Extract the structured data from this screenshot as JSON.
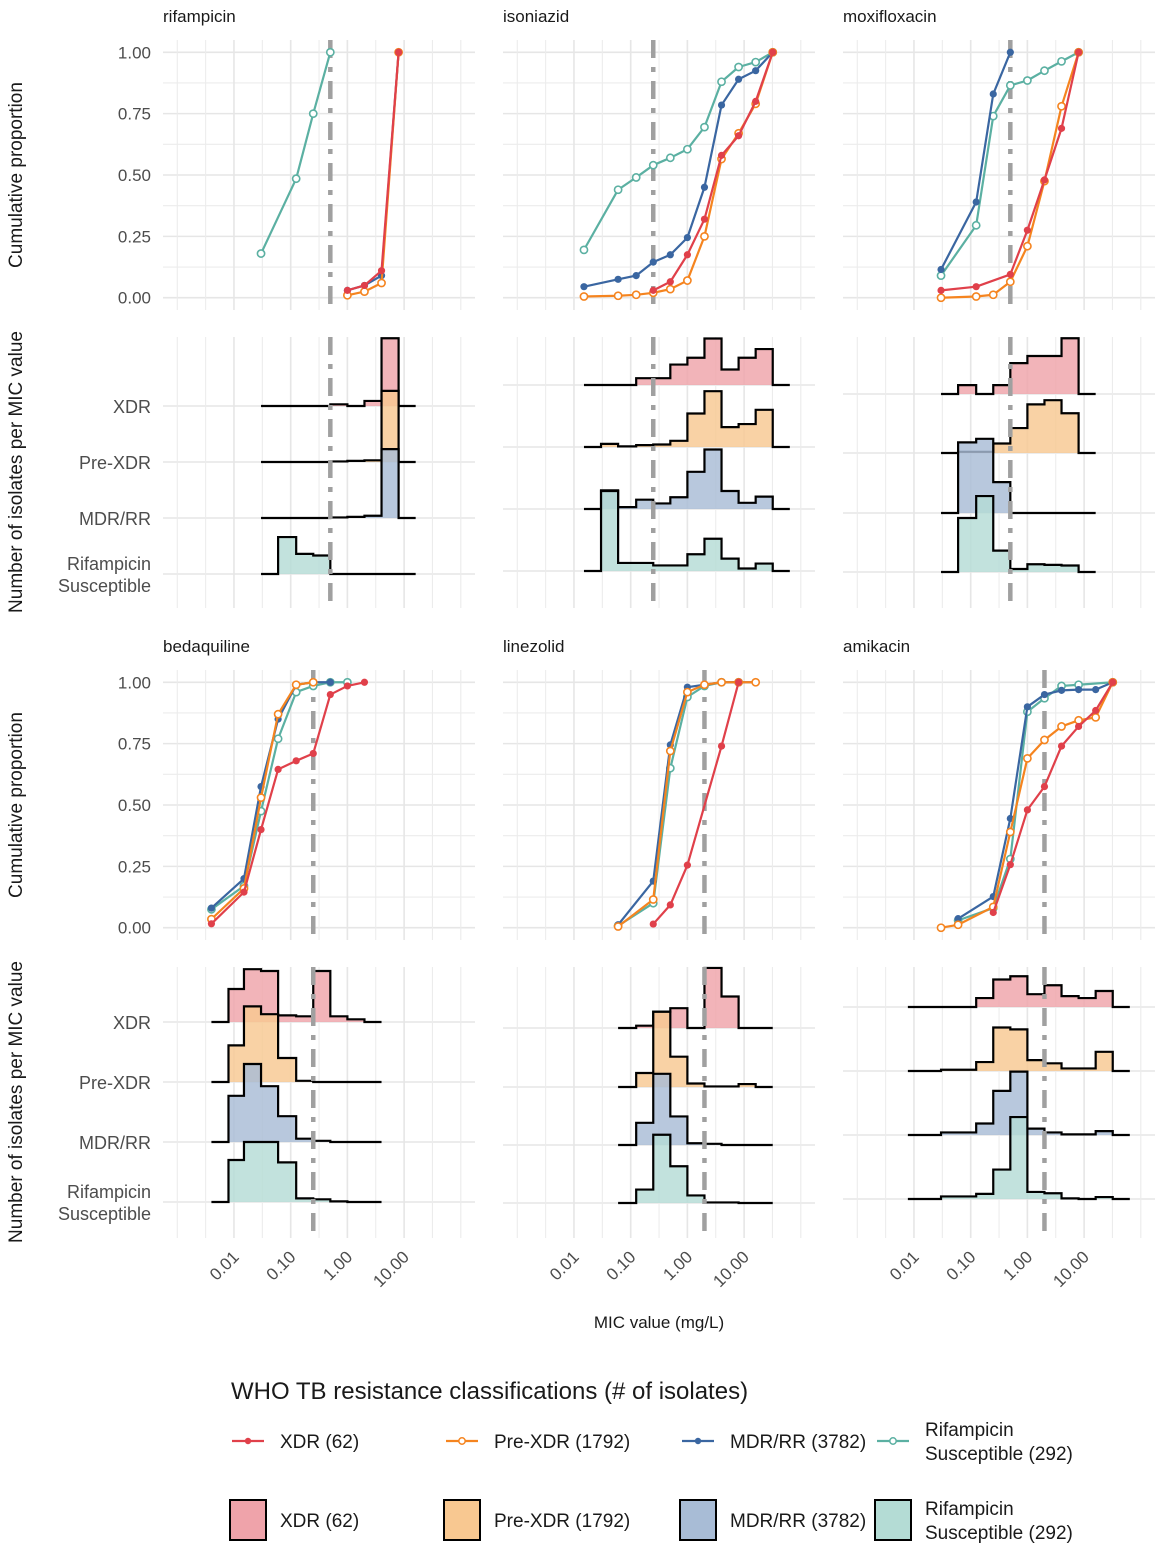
{
  "chart_data": {
    "type": "line",
    "title": "",
    "xlabel": "MIC value (mg/L)",
    "ylabel_top": "Cumulative proportion",
    "ylabel_ridge": "Number of isolates per MIC value",
    "xscale": "log10",
    "xlim": [
      0.00056,
      178
    ],
    "x_ticks": [
      0.01,
      0.1,
      1,
      10
    ],
    "x_tick_labels": [
      "0.01",
      "0.10",
      "1.00",
      "10.00"
    ],
    "y_ticks": [
      0,
      0.25,
      0.5,
      0.75,
      1
    ],
    "y_tick_labels": [
      "0.00",
      "0.25",
      "0.50",
      "0.75",
      "1.00"
    ],
    "ylim": [
      -0.05,
      1.05
    ],
    "grid": true,
    "ridge_categories": [
      "XDR",
      "Pre-XDR",
      "MDR/RR",
      "Rifampicin Susceptible"
    ],
    "ridge_category_labels": [
      [
        "XDR"
      ],
      [
        "Pre-XDR"
      ],
      [
        "MDR/RR"
      ],
      [
        "Rifampicin",
        "Susceptible"
      ]
    ],
    "groups": [
      {
        "key": "xdr",
        "name": "XDR (62)",
        "name_lines": [
          "XDR (62)"
        ],
        "color": "#E0404A",
        "fill": "#EFA3AA",
        "marker": "filled"
      },
      {
        "key": "prexdr",
        "name": "Pre-XDR (1792)",
        "name_lines": [
          "Pre-XDR (1792)"
        ],
        "color": "#F5841F",
        "fill": "#F8C891",
        "marker": "open"
      },
      {
        "key": "mdr",
        "name": "MDR/RR (3782)",
        "name_lines": [
          "MDR/RR (3782)"
        ],
        "color": "#3A66A1",
        "fill": "#A8BCD6",
        "marker": "filled"
      },
      {
        "key": "rifs",
        "name": "Rifampicin Susceptible (292)",
        "name_lines": [
          "Rifampicin",
          "Susceptible (292)"
        ],
        "color": "#5BB0A2",
        "fill": "#B4DCD5",
        "marker": "open"
      }
    ],
    "legend": {
      "title": "WHO TB resistance classifications (# of isolates)",
      "placement": "bottom"
    },
    "panels": [
      {
        "drug": "rifampicin",
        "breakpoint": 0.5,
        "cumulative": {
          "rifs": {
            "x": [
              0.03,
              0.125,
              0.25,
              0.5
            ],
            "y": [
              0.18,
              0.485,
              0.75,
              1.0
            ]
          },
          "mdr": {
            "x": [
              1,
              2,
              4,
              8
            ],
            "y": [
              0.03,
              0.05,
              0.09,
              1.0
            ]
          },
          "prexdr": {
            "x": [
              1,
              2,
              4,
              8
            ],
            "y": [
              0.01,
              0.025,
              0.06,
              1.0
            ]
          },
          "xdr": {
            "x": [
              1,
              2,
              4,
              8
            ],
            "y": [
              0.03,
              0.05,
              0.11,
              1.0
            ]
          }
        },
        "ridge": {
          "edges": [
            0.03,
            0.06,
            0.125,
            0.25,
            0.5,
            1,
            2,
            4,
            8,
            16
          ],
          "xdr": [
            0,
            0,
            0,
            0,
            0.03,
            0,
            0.09,
            1.21,
            0
          ],
          "prexdr": [
            0,
            0,
            0,
            0,
            0.01,
            0.02,
            0.03,
            1.27,
            0
          ],
          "mdr": [
            0,
            0,
            0,
            0,
            0.01,
            0.02,
            0.04,
            1.23,
            0
          ],
          "rifs": [
            0,
            0.66,
            0.36,
            0.33,
            0,
            0,
            0,
            0,
            0
          ]
        }
      },
      {
        "drug": "isoniazid",
        "breakpoint": 0.25,
        "cumulative": {
          "rifs": {
            "x": [
              0.015,
              0.06,
              0.125,
              0.25,
              0.5,
              1,
              2,
              4,
              8,
              16,
              32
            ],
            "y": [
              0.195,
              0.44,
              0.49,
              0.54,
              0.57,
              0.605,
              0.695,
              0.88,
              0.94,
              0.96,
              1.0
            ]
          },
          "mdr": {
            "x": [
              0.015,
              0.06,
              0.125,
              0.25,
              0.5,
              1,
              2,
              4,
              8,
              16,
              32
            ],
            "y": [
              0.045,
              0.075,
              0.09,
              0.145,
              0.175,
              0.245,
              0.45,
              0.785,
              0.89,
              0.925,
              1.0
            ]
          },
          "prexdr": {
            "x": [
              0.015,
              0.06,
              0.125,
              0.25,
              0.5,
              1,
              2,
              4,
              8,
              16,
              32
            ],
            "y": [
              0.005,
              0.008,
              0.012,
              0.02,
              0.035,
              0.07,
              0.25,
              0.565,
              0.67,
              0.79,
              1.0
            ]
          },
          "xdr": {
            "x": [
              0.25,
              0.5,
              1,
              2,
              4,
              8,
              16,
              32
            ],
            "y": [
              0.03,
              0.065,
              0.175,
              0.32,
              0.58,
              0.66,
              0.8,
              1.0
            ]
          }
        },
        "ridge": {
          "edges": [
            0.015,
            0.03,
            0.06,
            0.125,
            0.25,
            0.5,
            1,
            2,
            4,
            8,
            16,
            32,
            64
          ],
          "xdr": [
            0,
            0,
            0,
            0.11,
            0.11,
            0.33,
            0.44,
            0.75,
            0.25,
            0.44,
            0.58,
            0
          ],
          "prexdr": [
            0,
            0.05,
            0.01,
            0.03,
            0.04,
            0.1,
            0.54,
            0.9,
            0.32,
            0.37,
            0.6,
            0
          ],
          "mdr": [
            0,
            0.3,
            0.03,
            0.15,
            0.09,
            0.19,
            0.6,
            0.96,
            0.29,
            0.1,
            0.2,
            0
          ],
          "rifs": [
            0,
            1.29,
            0.13,
            0.13,
            0.09,
            0.09,
            0.27,
            0.52,
            0.2,
            0.04,
            0.12,
            0
          ]
        }
      },
      {
        "drug": "moxifloxacin",
        "breakpoint": 0.5,
        "cumulative": {
          "mdr": {
            "x": [
              0.03,
              0.125,
              0.25,
              0.5
            ],
            "y": [
              0.115,
              0.39,
              0.83,
              1.0
            ]
          },
          "rifs": {
            "x": [
              0.03,
              0.125,
              0.25,
              0.5,
              1,
              2,
              4,
              8
            ],
            "y": [
              0.09,
              0.295,
              0.74,
              0.865,
              0.885,
              0.925,
              0.963,
              1.0
            ]
          },
          "xdr": {
            "x": [
              0.03,
              0.125,
              0.5,
              1,
              2,
              4,
              8
            ],
            "y": [
              0.03,
              0.045,
              0.095,
              0.275,
              0.48,
              0.69,
              1.0
            ]
          },
          "prexdr": {
            "x": [
              0.03,
              0.125,
              0.25,
              0.5,
              1,
              2,
              4,
              8
            ],
            "y": [
              0.0,
              0.005,
              0.012,
              0.065,
              0.21,
              0.475,
              0.78,
              1.0
            ]
          }
        },
        "ridge": {
          "edges": [
            0.03,
            0.06,
            0.125,
            0.25,
            0.5,
            1,
            2,
            4,
            8,
            16
          ],
          "xdr": [
            0,
            0.15,
            0,
            0.15,
            0.52,
            0.64,
            0.64,
            0.94,
            0
          ],
          "prexdr": [
            0,
            0.02,
            0.02,
            0.16,
            0.42,
            0.82,
            0.89,
            0.67,
            0
          ],
          "mdr": [
            0,
            1.19,
            1.25,
            0.52,
            0,
            0,
            0,
            0,
            0
          ],
          "rifs": [
            0,
            0.91,
            1.28,
            0.36,
            0.05,
            0.13,
            0.12,
            0.11,
            0
          ]
        }
      },
      {
        "drug": "bedaquiline",
        "breakpoint": 0.25,
        "cumulative": {
          "mdr": {
            "x": [
              0.004,
              0.015,
              0.03,
              0.06,
              0.125,
              0.25,
              0.5
            ],
            "y": [
              0.08,
              0.2,
              0.575,
              0.85,
              0.99,
              1.0,
              1.0
            ]
          },
          "prexdr": {
            "x": [
              0.004,
              0.015,
              0.03,
              0.06,
              0.125,
              0.25
            ],
            "y": [
              0.035,
              0.16,
              0.53,
              0.87,
              0.99,
              1.0
            ]
          },
          "rifs": {
            "x": [
              0.004,
              0.015,
              0.03,
              0.06,
              0.125,
              0.25,
              0.5,
              1
            ],
            "y": [
              0.075,
              0.17,
              0.475,
              0.77,
              0.96,
              0.985,
              1.0,
              1.0
            ]
          },
          "xdr": {
            "x": [
              0.004,
              0.015,
              0.03,
              0.06,
              0.125,
              0.25,
              0.5,
              1,
              2
            ],
            "y": [
              0.016,
              0.145,
              0.4,
              0.645,
              0.68,
              0.71,
              0.95,
              0.985,
              1.0
            ]
          }
        },
        "ridge": {
          "edges": [
            0.004,
            0.008,
            0.015,
            0.03,
            0.06,
            0.125,
            0.25,
            0.5,
            1,
            2,
            4
          ],
          "xdr": [
            0,
            0.55,
            0.88,
            0.85,
            0.11,
            0.095,
            0.85,
            0.095,
            0.045,
            0
          ],
          "prexdr": [
            0,
            0.61,
            1.26,
            1.13,
            0.4,
            0.02,
            0,
            0,
            0,
            0
          ],
          "mdr": [
            0,
            0.77,
            1.3,
            0.93,
            0.43,
            0.055,
            0.02,
            0,
            0,
            0
          ],
          "rifs": [
            0,
            0.7,
            1.0,
            1.0,
            0.66,
            0.06,
            0.045,
            0.01,
            0,
            0
          ]
        }
      },
      {
        "drug": "linezolid",
        "breakpoint": 2,
        "cumulative": {
          "mdr": {
            "x": [
              0.06,
              0.25,
              0.5,
              1,
              2,
              4,
              8,
              16
            ],
            "y": [
              0.012,
              0.19,
              0.745,
              0.98,
              0.99,
              1.0,
              1.0,
              1.0
            ]
          },
          "prexdr": {
            "x": [
              0.06,
              0.25,
              0.5,
              1,
              2,
              4,
              8,
              16
            ],
            "y": [
              0.005,
              0.115,
              0.72,
              0.96,
              0.99,
              1.0,
              1.0,
              1.0
            ]
          },
          "rifs": {
            "x": [
              0.06,
              0.25,
              0.5,
              1,
              2,
              4,
              8
            ],
            "y": [
              0.008,
              0.1,
              0.65,
              0.94,
              0.985,
              1.0,
              1.0
            ]
          },
          "xdr": {
            "x": [
              0.25,
              0.5,
              1,
              4,
              8
            ],
            "y": [
              0.015,
              0.093,
              0.255,
              0.74,
              1.0
            ]
          }
        },
        "ridge": {
          "edges": [
            0.06,
            0.125,
            0.25,
            0.5,
            1,
            2,
            4,
            8,
            16,
            32
          ],
          "xdr": [
            0,
            0.04,
            0.28,
            0.34,
            0,
            1.03,
            0.54,
            0,
            0
          ],
          "prexdr": [
            0,
            0.24,
            1.29,
            0.52,
            0.06,
            0.01,
            0.01,
            0.05,
            0
          ],
          "mdr": [
            0,
            0.38,
            1.22,
            0.49,
            0.03,
            0.02,
            0,
            0,
            0
          ],
          "rifs": [
            0,
            0.23,
            1.17,
            0.63,
            0.13,
            0.01,
            0.01,
            0,
            0
          ]
        }
      },
      {
        "drug": "amikacin",
        "breakpoint": 2,
        "cumulative": {
          "mdr": {
            "x": [
              0.06,
              0.25,
              0.5,
              1,
              2,
              4,
              8,
              16,
              32
            ],
            "y": [
              0.037,
              0.127,
              0.445,
              0.9,
              0.95,
              0.967,
              0.97,
              0.97,
              1.0
            ]
          },
          "rifs": {
            "x": [
              0.06,
              0.25,
              0.5,
              1,
              2,
              4,
              8,
              32
            ],
            "y": [
              0.03,
              0.08,
              0.28,
              0.88,
              0.935,
              0.985,
              0.99,
              1.0
            ]
          },
          "prexdr": {
            "x": [
              0.03,
              0.06,
              0.25,
              0.5,
              1,
              2,
              4,
              8,
              16,
              32
            ],
            "y": [
              0.0,
              0.012,
              0.085,
              0.39,
              0.69,
              0.765,
              0.82,
              0.845,
              0.857,
              1.0
            ]
          },
          "xdr": {
            "x": [
              0.25,
              0.5,
              1,
              2,
              4,
              8,
              16,
              32
            ],
            "y": [
              0.062,
              0.257,
              0.48,
              0.575,
              0.74,
              0.82,
              0.885,
              1.0
            ]
          }
        },
        "ridge": {
          "edges": [
            0.0078,
            0.03,
            0.125,
            0.25,
            0.5,
            1,
            2,
            4,
            8,
            16,
            32,
            64
          ],
          "xdr": [
            0,
            0,
            0.14,
            0.43,
            0.48,
            0.2,
            0.34,
            0.17,
            0.14,
            0.25,
            0
          ],
          "prexdr": [
            0,
            0.02,
            0.14,
            0.68,
            0.65,
            0.17,
            0.12,
            0.04,
            0.04,
            0.3,
            0
          ],
          "mdr": [
            0,
            0.04,
            0.18,
            0.69,
            0.99,
            0.1,
            0.04,
            0.01,
            0.01,
            0.06,
            0
          ],
          "rifs": [
            0,
            0.04,
            0.08,
            0.46,
            1.28,
            0.11,
            0.09,
            0.01,
            0,
            0.03,
            0
          ]
        }
      }
    ]
  }
}
